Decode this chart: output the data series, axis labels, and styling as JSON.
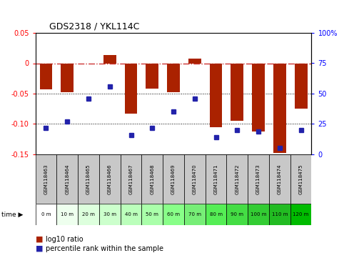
{
  "title": "GDS2318 / YKL114C",
  "samples": [
    "GSM118463",
    "GSM118464",
    "GSM118465",
    "GSM118466",
    "GSM118467",
    "GSM118468",
    "GSM118469",
    "GSM118470",
    "GSM118471",
    "GSM118472",
    "GSM118473",
    "GSM118474",
    "GSM118475"
  ],
  "time_labels": [
    "0 m",
    "10 m",
    "20 m",
    "30 m",
    "40 m",
    "50 m",
    "60 m",
    "70 m",
    "80 m",
    "90 m",
    "100 m",
    "110 m",
    "120 m"
  ],
  "log10_ratio": [
    -0.043,
    -0.048,
    -0.001,
    0.013,
    -0.083,
    -0.042,
    -0.048,
    0.008,
    -0.105,
    -0.095,
    -0.112,
    -0.148,
    -0.075
  ],
  "percentile_rank": [
    22,
    27,
    46,
    56,
    16,
    22,
    35,
    46,
    14,
    20,
    19,
    5,
    20
  ],
  "ylim_left": [
    -0.15,
    0.05
  ],
  "ylim_right": [
    0,
    100
  ],
  "left_ticks": [
    0.05,
    0.0,
    -0.05,
    -0.1,
    -0.15
  ],
  "right_ticks": [
    100,
    75,
    50,
    25,
    0
  ],
  "bar_color": "#AA2200",
  "dot_color": "#2222AA",
  "ref_line_color": "#CC3333",
  "bg_color": "#FFFFFF",
  "sample_bg_color": "#C8C8C8",
  "time_colors": [
    "#FFFFFF",
    "#EEFFEE",
    "#DDFFDD",
    "#CCFFCC",
    "#BBFFBB",
    "#AAFFAA",
    "#88FF88",
    "#77EE77",
    "#55EE55",
    "#44DD44",
    "#33CC33",
    "#22BB22",
    "#00BB00"
  ]
}
